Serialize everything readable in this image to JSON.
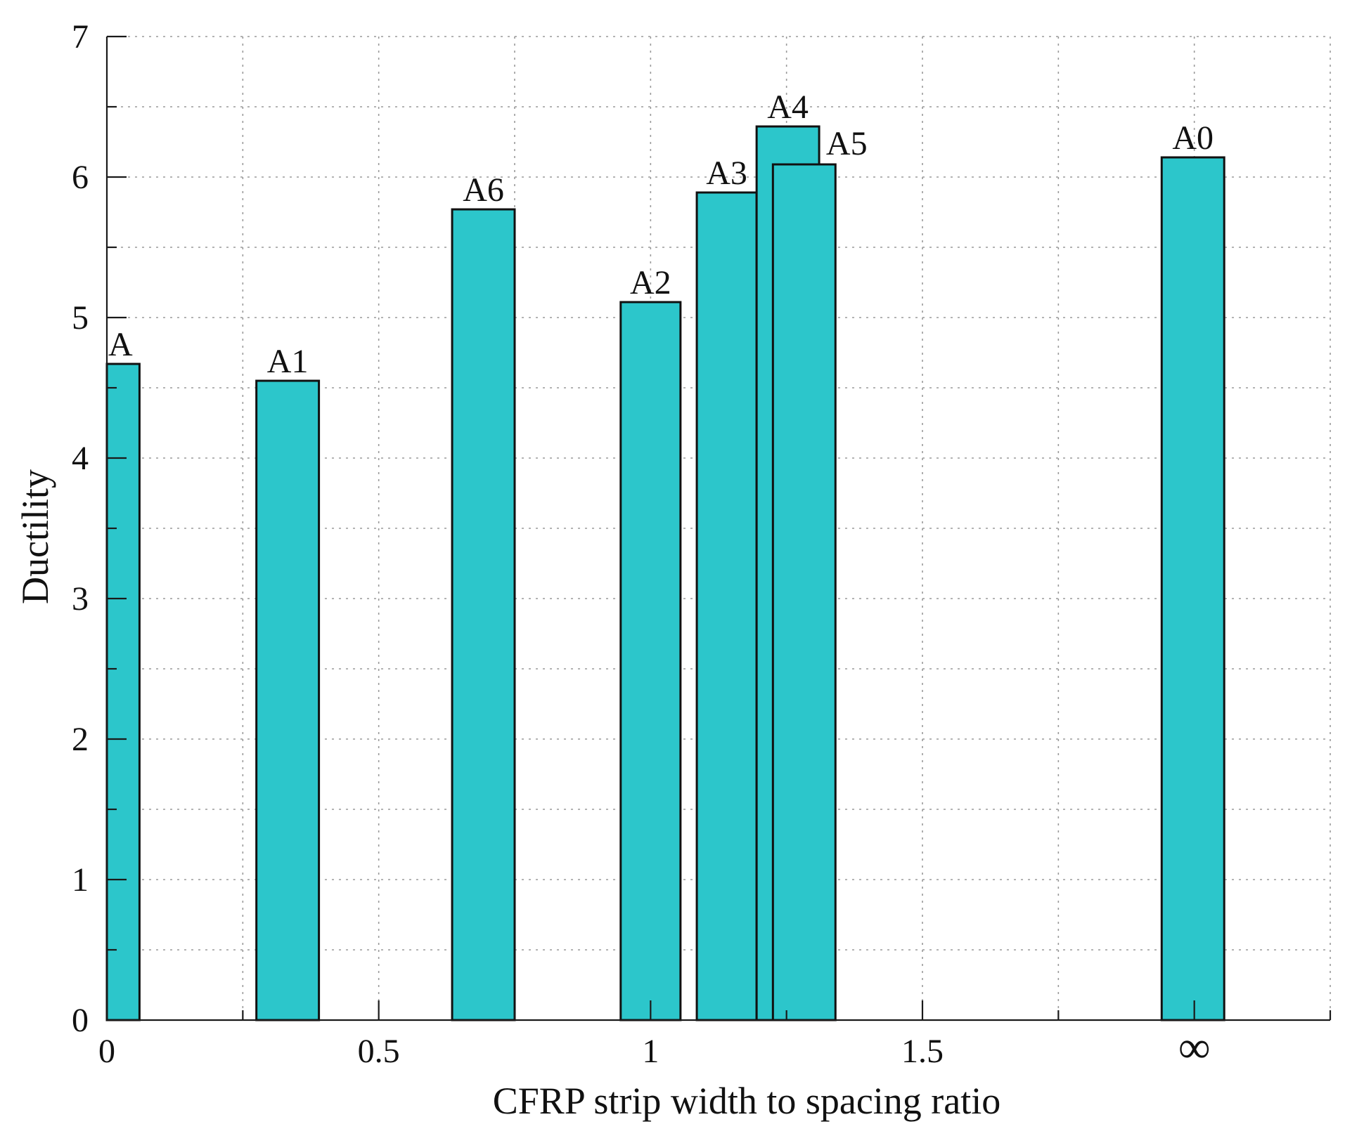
{
  "chart_data": {
    "type": "bar",
    "title": "",
    "xlabel": "CFRP strip width to spacing ratio",
    "ylabel": "Ductility",
    "xlim": [
      0,
      2.25
    ],
    "ylim": [
      0,
      7
    ],
    "grid": true,
    "xticks": [
      {
        "value": 0,
        "label": "0"
      },
      {
        "value": 0.5,
        "label": "0.5"
      },
      {
        "value": 1,
        "label": "1"
      },
      {
        "value": 1.5,
        "label": "1.5"
      },
      {
        "value": 2,
        "label": "∞"
      }
    ],
    "yticks": [
      {
        "value": 0,
        "label": "0"
      },
      {
        "value": 1,
        "label": "1"
      },
      {
        "value": 2,
        "label": "2"
      },
      {
        "value": 3,
        "label": "3"
      },
      {
        "value": 4,
        "label": "4"
      },
      {
        "value": 5,
        "label": "5"
      },
      {
        "value": 6,
        "label": "6"
      },
      {
        "value": 7,
        "label": "7"
      }
    ],
    "bars": [
      {
        "label": "A",
        "x0": 0.0,
        "x1": 0.06,
        "value": 4.67
      },
      {
        "label": "A1",
        "x0": 0.275,
        "x1": 0.39,
        "value": 4.55
      },
      {
        "label": "A6",
        "x0": 0.635,
        "x1": 0.75,
        "value": 5.77
      },
      {
        "label": "A2",
        "x0": 0.945,
        "x1": 1.055,
        "value": 5.11
      },
      {
        "label": "A3",
        "x0": 1.085,
        "x1": 1.195,
        "value": 5.89
      },
      {
        "label": "A4",
        "x0": 1.195,
        "x1": 1.31,
        "value": 6.36
      },
      {
        "label": "A5",
        "x0": 1.225,
        "x1": 1.34,
        "value": 6.09
      },
      {
        "label": "A0",
        "x0": 1.94,
        "x1": 2.055,
        "value": 6.14
      }
    ],
    "bar_color": "#2cc6cb"
  }
}
